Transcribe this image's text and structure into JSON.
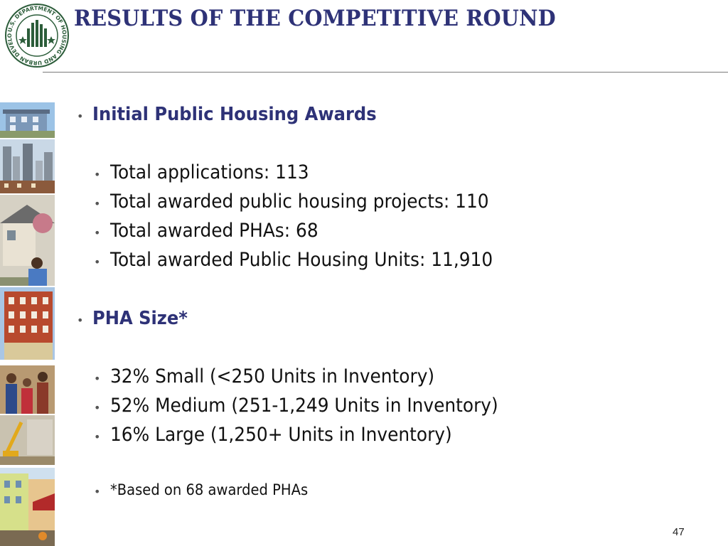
{
  "slide": {
    "title": "RESULTS OF THE COMPETITIVE ROUND",
    "page_number": "47",
    "logo": {
      "ring_text": "U.S. DEPARTMENT OF HOUSING AND URBAN DEVELOPMENT",
      "icon": "hud-seal-icon"
    }
  },
  "sections": [
    {
      "heading": "Initial Public Housing Awards",
      "items": [
        "Total applications:  113",
        "Total awarded public housing projects:  110",
        "Total awarded PHAs:  68",
        "Total awarded Public Housing Units:  11,910"
      ]
    },
    {
      "heading": "PHA Size*",
      "items": [
        "32% Small (<250 Units in Inventory)",
        "52% Medium (251-1,249 Units in Inventory)",
        "16% Large (1,250+ Units in Inventory)"
      ]
    }
  ],
  "footnote": "*Based on 68 awarded PHAs",
  "bullet_char": "•",
  "colors": {
    "title": "#2e3277",
    "heading": "#2e3277",
    "body_text": "#111111",
    "rule": "#7a7a7a"
  }
}
